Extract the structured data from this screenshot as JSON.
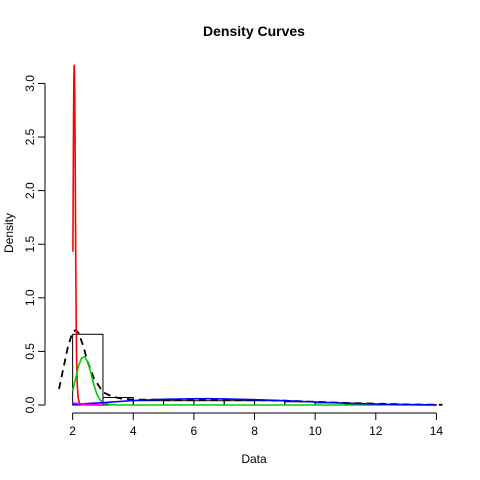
{
  "chart_data": {
    "type": "line",
    "title": "Density Curves",
    "xlabel": "Data",
    "ylabel": "Density",
    "xlim": [
      1.55,
      14.25
    ],
    "ylim": [
      0,
      3.2
    ],
    "x_ticks": [
      2,
      4,
      6,
      8,
      10,
      12,
      14
    ],
    "y_ticks": [
      0.0,
      0.5,
      1.0,
      1.5,
      2.0,
      2.5,
      3.0
    ],
    "y_tick_labels": [
      "0.0",
      "0.5",
      "1.0",
      "1.5",
      "2.0",
      "2.5",
      "3.0"
    ],
    "grid": false,
    "histogram": {
      "bins": [
        [
          2,
          3
        ],
        [
          3,
          4
        ],
        [
          4,
          5
        ],
        [
          5,
          6
        ],
        [
          6,
          7
        ],
        [
          7,
          8
        ],
        [
          8,
          9
        ],
        [
          9,
          10
        ],
        [
          10,
          11
        ],
        [
          11,
          12
        ],
        [
          12,
          13
        ],
        [
          13,
          14
        ]
      ],
      "values": [
        0.66,
        0.07,
        0.04,
        0.04,
        0.04,
        0.04,
        0.04,
        0.03,
        0.02,
        0.01,
        0.005,
        0.002
      ]
    },
    "series": [
      {
        "color": "#000000",
        "dash": "dashed",
        "x": [
          1.55,
          1.7,
          1.85,
          2.0,
          2.1,
          2.2,
          2.35,
          2.5,
          2.7,
          3.0,
          3.3,
          3.6,
          4.0,
          5.0,
          6.0,
          7.0,
          8.0,
          9.0,
          10.0,
          11.0,
          12.0,
          13.0,
          14.2
        ],
        "y": [
          0.15,
          0.35,
          0.55,
          0.68,
          0.7,
          0.67,
          0.55,
          0.4,
          0.25,
          0.12,
          0.08,
          0.06,
          0.05,
          0.05,
          0.05,
          0.05,
          0.045,
          0.04,
          0.03,
          0.02,
          0.012,
          0.006,
          0.002
        ]
      },
      {
        "color": "#ff0000",
        "dash": "solid",
        "x": [
          2.01,
          2.02,
          2.03,
          2.04,
          2.05,
          2.06,
          2.07,
          2.08,
          2.09,
          2.1,
          2.11,
          2.12,
          2.13,
          2.15,
          2.18,
          2.22,
          2.3,
          2.4,
          2.6,
          3.0
        ],
        "y": [
          1.43,
          2.1,
          2.7,
          3.05,
          3.17,
          3.12,
          2.9,
          2.5,
          2.0,
          1.5,
          1.05,
          0.7,
          0.45,
          0.2,
          0.07,
          0.02,
          0.005,
          0.001,
          0.0,
          0.0
        ]
      },
      {
        "color": "#00cd00",
        "dash": "solid",
        "x": [
          2.0,
          2.1,
          2.2,
          2.3,
          2.4,
          2.5,
          2.6,
          2.7,
          2.8,
          2.9,
          3.0,
          3.2,
          3.5,
          4.0,
          6.0,
          8.0,
          10.0,
          12.0,
          14.0
        ],
        "y": [
          0.13,
          0.25,
          0.37,
          0.44,
          0.45,
          0.4,
          0.3,
          0.19,
          0.1,
          0.05,
          0.02,
          0.005,
          0.0,
          0.0,
          0.0,
          0.0,
          0.0,
          0.0,
          0.0
        ]
      },
      {
        "color": "#0000ff",
        "dash": "solid",
        "x": [
          2.0,
          3.0,
          4.0,
          5.0,
          6.0,
          6.5,
          7.0,
          8.0,
          9.0,
          10.0,
          11.0,
          12.0,
          13.0,
          14.0
        ],
        "y": [
          0.005,
          0.022,
          0.042,
          0.053,
          0.058,
          0.059,
          0.057,
          0.05,
          0.04,
          0.028,
          0.017,
          0.009,
          0.004,
          0.001
        ]
      },
      {
        "color": "#ff00ff",
        "dash": "solid",
        "x": [
          2.0,
          2.3,
          2.6,
          3.0
        ],
        "y": [
          0.02,
          0.01,
          0.004,
          0.0
        ]
      }
    ]
  }
}
